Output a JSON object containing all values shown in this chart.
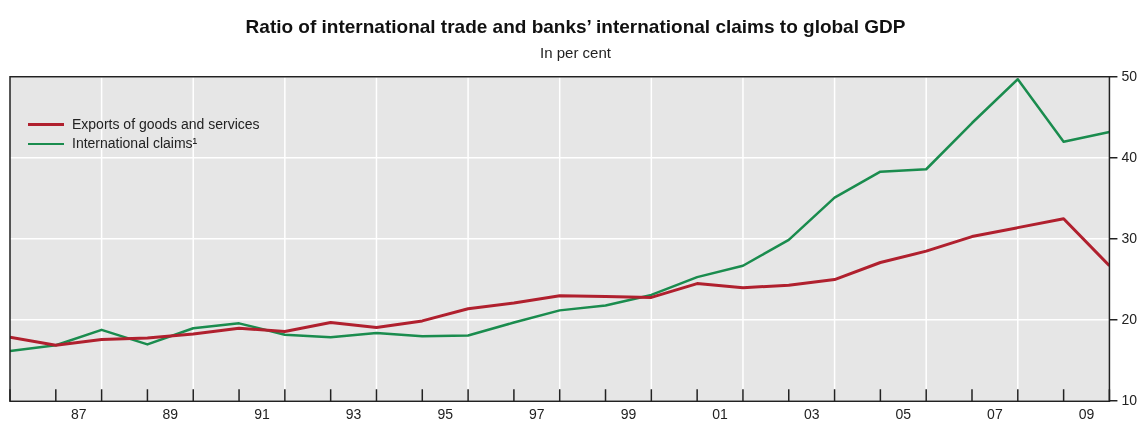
{
  "chart_data": {
    "type": "line",
    "title": "Ratio of international trade and banks’ international claims to global GDP",
    "subtitle": "In per cent",
    "x": [
      1985.5,
      1986.5,
      1987.5,
      1988.5,
      1989.5,
      1990.5,
      1991.5,
      1992.5,
      1993.5,
      1994.5,
      1995.5,
      1996.5,
      1997.5,
      1998.5,
      1999.5,
      2000.5,
      2001.5,
      2002.5,
      2003.5,
      2004.5,
      2005.5,
      2006.5,
      2007.5,
      2008.5,
      2009.5
    ],
    "series": [
      {
        "name": "Exports of goods and services",
        "color": "#b0202e",
        "values": [
          17.9,
          16.9,
          17.6,
          17.8,
          18.3,
          19.0,
          18.6,
          19.7,
          19.1,
          19.9,
          21.4,
          22.1,
          23.0,
          22.9,
          22.8,
          24.5,
          24.0,
          24.3,
          25.0,
          27.1,
          28.5,
          30.3,
          31.4,
          32.5,
          26.7
        ]
      },
      {
        "name": "International claims¹",
        "color": "#1a8c4e",
        "values": [
          16.2,
          16.9,
          18.8,
          17.0,
          19.0,
          19.6,
          18.2,
          17.9,
          18.4,
          18.0,
          18.1,
          19.7,
          21.2,
          21.8,
          23.1,
          25.3,
          26.7,
          29.9,
          35.1,
          38.3,
          38.6,
          44.3,
          49.7,
          42.0,
          43.2
        ]
      }
    ],
    "xlim": [
      1985.5,
      2009.5
    ],
    "xticks": [
      {
        "value": 1987,
        "label": "87"
      },
      {
        "value": 1989,
        "label": "89"
      },
      {
        "value": 1991,
        "label": "91"
      },
      {
        "value": 1993,
        "label": "93"
      },
      {
        "value": 1995,
        "label": "95"
      },
      {
        "value": 1997,
        "label": "97"
      },
      {
        "value": 1999,
        "label": "99"
      },
      {
        "value": 2001,
        "label": "01"
      },
      {
        "value": 2003,
        "label": "03"
      },
      {
        "value": 2005,
        "label": "05"
      },
      {
        "value": 2007,
        "label": "07"
      },
      {
        "value": 2009,
        "label": "09"
      }
    ],
    "ylim": [
      10,
      50
    ],
    "yticks": [
      10,
      20,
      30,
      40,
      50
    ],
    "grid": true,
    "legend": "top left",
    "marker": "none",
    "line_style": "solid"
  }
}
